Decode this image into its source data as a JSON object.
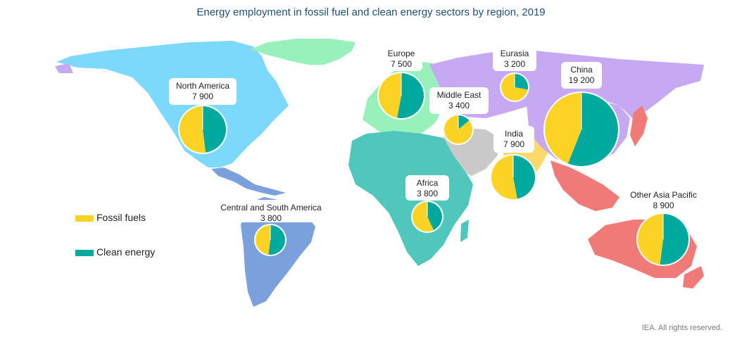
{
  "title": "Energy employment in fossil fuel and clean energy sectors by region, 2019",
  "credit": "IEA. All rights reserved.",
  "colors": {
    "fossil": "#fcd224",
    "clean": "#00a99d",
    "north_america": "#7dd9fb",
    "central_south_america": "#7ba1dc",
    "greenland": "#98f0bb",
    "europe": "#98f0bb",
    "eurasia": "#c6a9f2",
    "africa": "#4fc7bc",
    "middle_east": "#c9c9c9",
    "india": "#fbd96a",
    "china_region": "#c6a9f2",
    "other_asia_pacific": "#f07a78"
  },
  "legend": [
    {
      "label": "Fossil fuels",
      "color": "#fcd224"
    },
    {
      "label": "Clean energy",
      "color": "#00a99d"
    }
  ],
  "regions": [
    {
      "name": "North America",
      "value": "7 900",
      "fossil_share": 0.52
    },
    {
      "name": "Central and South America",
      "value": "3 800",
      "fossil_share": 0.48
    },
    {
      "name": "Europe",
      "value": "7 500",
      "fossil_share": 0.47
    },
    {
      "name": "Eurasia",
      "value": "3 200",
      "fossil_share": 0.72
    },
    {
      "name": "Middle East",
      "value": "3 400",
      "fossil_share": 0.86
    },
    {
      "name": "Africa",
      "value": "3 800",
      "fossil_share": 0.57
    },
    {
      "name": "India",
      "value": "7 900",
      "fossil_share": 0.53
    },
    {
      "name": "China",
      "value": "19 200",
      "fossil_share": 0.44
    },
    {
      "name": "Other Asia Pacific",
      "value": "8 900",
      "fossil_share": 0.48
    }
  ]
}
